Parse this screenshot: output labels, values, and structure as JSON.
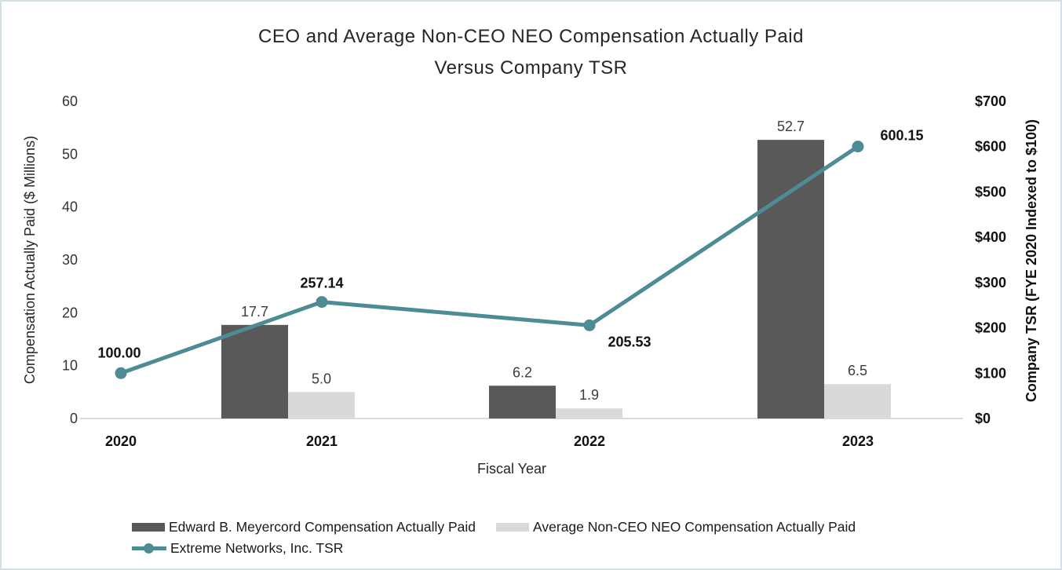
{
  "chart_data": {
    "type": "combo-bar-line",
    "title_line1": "CEO and Average Non-CEO NEO Compensation Actually Paid",
    "title_line2": "Versus Company TSR",
    "xlabel": "Fiscal Year",
    "categories": [
      "2020",
      "2021",
      "2022",
      "2023"
    ],
    "left_axis": {
      "label": "Compensation Actually Paid ($ Millions)",
      "min": 0,
      "max": 60,
      "step": 10,
      "ticks": [
        "0",
        "10",
        "20",
        "30",
        "40",
        "50",
        "60"
      ]
    },
    "right_axis": {
      "label": "Company TSR (FYE 2020 Indexed to $100)",
      "min": 0,
      "max": 700,
      "step": 100,
      "ticks": [
        "$0",
        "$100",
        "$200",
        "$300",
        "$400",
        "$500",
        "$600",
        "$700"
      ]
    },
    "series": [
      {
        "name": "Edward B. Meyercord Compensation Actually Paid",
        "type": "bar",
        "axis": "left",
        "color": "#595959",
        "values": [
          null,
          17.7,
          6.2,
          52.7
        ],
        "labels": [
          "",
          "17.7",
          "6.2",
          "52.7"
        ]
      },
      {
        "name": "Average Non-CEO NEO Compensation Actually Paid",
        "type": "bar",
        "axis": "left",
        "color": "#d9d9d9",
        "values": [
          null,
          5.0,
          1.9,
          6.5
        ],
        "labels": [
          "",
          "5.0",
          "1.9",
          "6.5"
        ]
      },
      {
        "name": "Extreme Networks, Inc. TSR",
        "type": "line",
        "axis": "right",
        "color": "#4d8b95",
        "values": [
          100.0,
          257.14,
          205.53,
          600.15
        ],
        "labels": [
          "100.00",
          "257.14",
          "205.53",
          "600.15"
        ]
      }
    ],
    "layout_hints": {
      "grid": "off",
      "legend_position": "bottom-left",
      "axis_line_color": "#d9d9d9",
      "frame_border_color": "#d3e0e8"
    }
  }
}
